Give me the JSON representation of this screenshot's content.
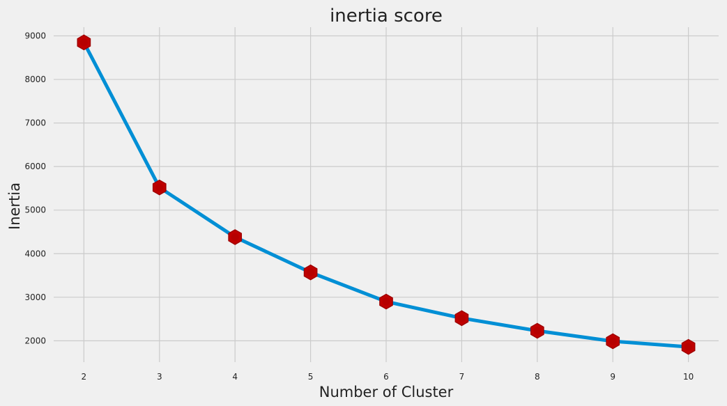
{
  "chart_data": {
    "type": "line",
    "title": "inertia score",
    "xlabel": "Number of Cluster",
    "ylabel": "Inertia",
    "x": [
      2,
      3,
      4,
      5,
      6,
      7,
      8,
      9,
      10
    ],
    "series": [
      {
        "values": [
          8850,
          5520,
          4380,
          3570,
          2900,
          2520,
          2230,
          1990,
          1860
        ]
      }
    ],
    "xticks": [
      2,
      3,
      4,
      5,
      6,
      7,
      8,
      9,
      10
    ],
    "yticks": [
      2000,
      3000,
      4000,
      5000,
      6000,
      7000,
      8000,
      9000
    ],
    "xlim": [
      1.6,
      10.4
    ],
    "ylim": [
      1510,
      9200
    ],
    "grid": true,
    "markers": "red hexagon/dots at each data point",
    "colors": {
      "background": "#f0f0f0",
      "grid": "#cbcbcb",
      "line": "#008fd5",
      "marker": "#c00000",
      "marker_edge": "#a00000",
      "text": "#222222"
    }
  }
}
